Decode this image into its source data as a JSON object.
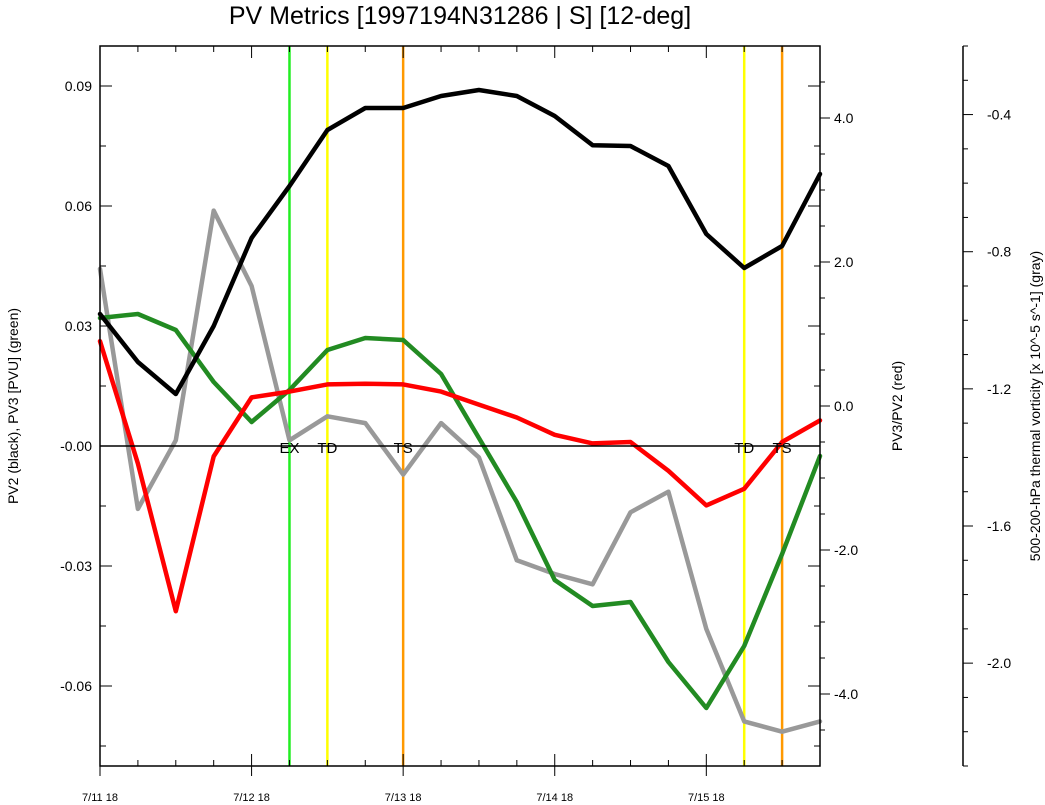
{
  "chart_data": {
    "type": "line",
    "title": "PV Metrics [1997194N31286 | S] [12-deg]",
    "x": [
      0,
      0.25,
      0.5,
      0.75,
      1.0,
      1.25,
      1.5,
      1.75,
      2.0,
      2.25,
      2.5,
      2.75,
      3.0,
      3.25,
      3.5,
      3.75,
      4.0,
      4.25,
      4.5,
      4.75
    ],
    "xlim": [
      0,
      4.75
    ],
    "xticks": [
      0,
      1,
      2,
      3,
      4
    ],
    "xtick_labels": [
      "7/11 18",
      "7/12 18",
      "7/13 18",
      "7/14 18",
      "7/15 18"
    ],
    "left_axis": {
      "label": "PV2 (black), PV3 [PVU] (green)",
      "ylim": [
        -0.08,
        0.1
      ],
      "ticks": [
        0.09,
        0.06,
        0.03,
        0.0,
        -0.03,
        -0.06
      ],
      "tick_labels": [
        "0.09",
        "0.06",
        "0.03",
        "-0.00",
        "-0.03",
        "-0.06"
      ]
    },
    "right_axis": {
      "label": "PV3/PV2 (red)",
      "ylim": [
        -5.0,
        5.0
      ],
      "ticks": [
        4.0,
        2.0,
        0.0,
        -2.0,
        -4.0
      ],
      "tick_labels": [
        "4.0",
        "2.0",
        "0.0",
        "-2.0",
        "-4.0"
      ]
    },
    "far_right_axis": {
      "label": "500-200-hPa thermal vorticity [x 10^-5 s^-1] (gray)",
      "ylim": [
        -2.3,
        -0.2
      ],
      "ticks": [
        -0.4,
        -0.8,
        -1.2,
        -1.6,
        -2.0
      ],
      "tick_labels": [
        "-0.4",
        "-0.8",
        "-1.2",
        "-1.6",
        "-2.0"
      ]
    },
    "series": [
      {
        "name": "PV2",
        "axis": "left_axis",
        "color": "#000000",
        "values": [
          0.033,
          0.021,
          0.013,
          0.03,
          0.052,
          0.065,
          0.079,
          0.0845,
          0.0845,
          0.0875,
          0.089,
          0.0875,
          0.0825,
          0.0752,
          0.075,
          0.07,
          0.053,
          0.0445,
          0.05,
          0.068
        ]
      },
      {
        "name": "PV3",
        "axis": "left_axis",
        "color": "#228b22",
        "values": [
          0.032,
          0.033,
          0.029,
          0.016,
          0.006,
          0.014,
          0.024,
          0.027,
          0.0265,
          0.018,
          0.002,
          -0.014,
          -0.0335,
          -0.04,
          -0.039,
          -0.054,
          -0.0655,
          -0.05,
          -0.027,
          -0.0025
        ]
      },
      {
        "name": "PV3/PV2",
        "axis": "right_axis",
        "color": "#ff0000",
        "values": [
          0.9,
          -0.8,
          -2.85,
          -0.7,
          0.12,
          0.2,
          0.3,
          0.31,
          0.3,
          0.2,
          0.02,
          -0.16,
          -0.4,
          -0.52,
          -0.5,
          -0.9,
          -1.38,
          -1.15,
          -0.5,
          -0.2
        ]
      },
      {
        "name": "thermal vorticity",
        "axis": "far_right_axis",
        "color": "#999999",
        "values": [
          -0.85,
          -1.55,
          -1.35,
          -0.68,
          -0.9,
          -1.35,
          -1.28,
          -1.3,
          -1.45,
          -1.3,
          -1.4,
          -1.7,
          -1.74,
          -1.77,
          -1.56,
          -1.5,
          -1.9,
          -2.17,
          -2.2,
          -2.17
        ]
      }
    ],
    "markers": [
      {
        "x": 1.25,
        "label": "EX",
        "color": "#22ee22"
      },
      {
        "x": 1.5,
        "label": "TD",
        "color": "#ffff00"
      },
      {
        "x": 2.0,
        "label": "TS",
        "color": "#ff9900"
      },
      {
        "x": 4.25,
        "label": "TD",
        "color": "#ffff00"
      },
      {
        "x": 4.5,
        "label": "TS",
        "color": "#ff9900"
      }
    ],
    "grid": false,
    "legend": "none"
  }
}
